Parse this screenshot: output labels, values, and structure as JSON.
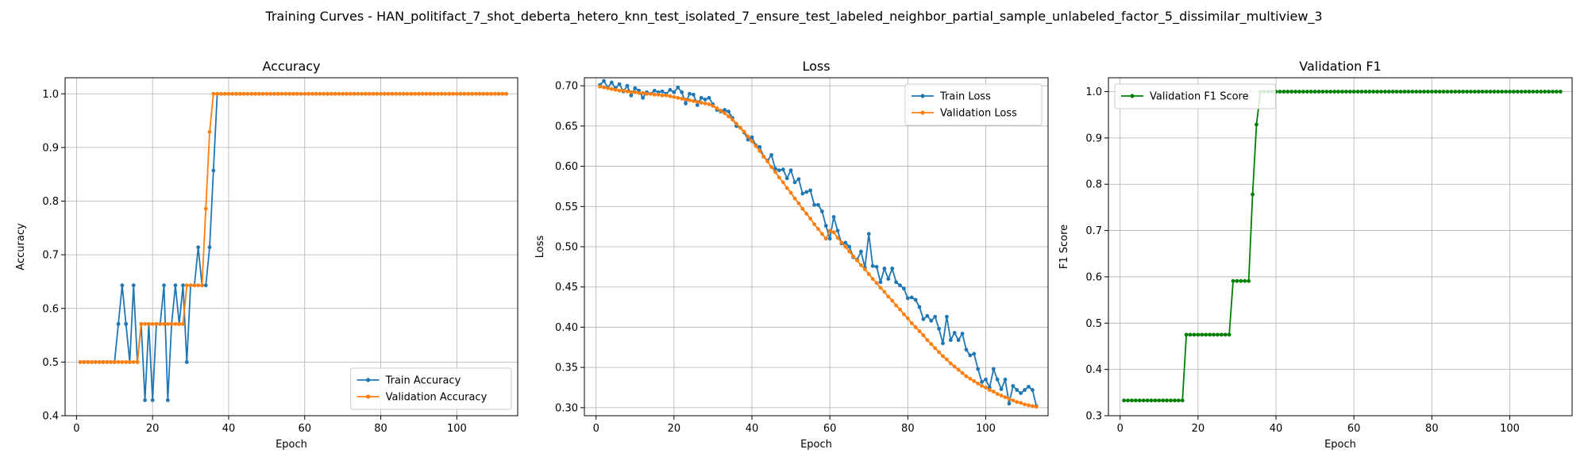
{
  "figure": {
    "suptitle": "Training Curves - HAN_politifact_7_shot_deberta_hetero_knn_test_isolated_7_ensure_test_labeled_neighbor_partial_sample_unlabeled_factor_5_dissimilar_multiview_3"
  },
  "chart_data": [
    {
      "type": "line",
      "title": "Accuracy",
      "xlabel": "Epoch",
      "ylabel": "Accuracy",
      "xlim": [
        -3,
        116
      ],
      "ylim": [
        0.4,
        1.03
      ],
      "xticks": [
        0,
        20,
        40,
        60,
        80,
        100
      ],
      "yticks": [
        0.4,
        0.5,
        0.6,
        0.7,
        0.8,
        0.9,
        1.0
      ],
      "grid": true,
      "legend_position": "lower-right",
      "series": [
        {
          "name": "Train Accuracy",
          "color": "#1f77b4",
          "x": [
            1,
            2,
            3,
            4,
            5,
            6,
            7,
            8,
            9,
            10,
            11,
            12,
            13,
            14,
            15,
            16,
            17,
            18,
            19,
            20,
            21,
            22,
            23,
            24,
            25,
            26,
            27,
            28,
            29,
            30,
            31,
            32,
            33,
            34,
            35,
            36,
            37,
            38,
            113
          ],
          "y": [
            0.5,
            0.5,
            0.5,
            0.5,
            0.5,
            0.5,
            0.5,
            0.5,
            0.5,
            0.5,
            0.571,
            0.643,
            0.571,
            0.5,
            0.643,
            0.5,
            0.571,
            0.429,
            0.571,
            0.429,
            0.571,
            0.571,
            0.643,
            0.429,
            0.571,
            0.643,
            0.571,
            0.643,
            0.5,
            0.643,
            0.643,
            0.714,
            0.643,
            0.643,
            0.714,
            0.857,
            1.0,
            1.0,
            1.0
          ]
        },
        {
          "name": "Validation Accuracy",
          "color": "#ff7f0e",
          "x": [
            1,
            2,
            3,
            4,
            5,
            6,
            7,
            8,
            9,
            10,
            11,
            12,
            13,
            14,
            15,
            16,
            17,
            18,
            19,
            20,
            21,
            22,
            23,
            24,
            25,
            26,
            27,
            28,
            29,
            30,
            31,
            32,
            33,
            34,
            35,
            36,
            37,
            38,
            113
          ],
          "y": [
            0.5,
            0.5,
            0.5,
            0.5,
            0.5,
            0.5,
            0.5,
            0.5,
            0.5,
            0.5,
            0.5,
            0.5,
            0.5,
            0.5,
            0.5,
            0.5,
            0.571,
            0.571,
            0.571,
            0.571,
            0.571,
            0.571,
            0.571,
            0.571,
            0.571,
            0.571,
            0.571,
            0.571,
            0.643,
            0.643,
            0.643,
            0.643,
            0.643,
            0.786,
            0.929,
            1.0,
            1.0,
            1.0,
            1.0
          ]
        }
      ]
    },
    {
      "type": "line",
      "title": "Loss",
      "xlabel": "Epoch",
      "ylabel": "Loss",
      "xlim": [
        -3,
        116
      ],
      "ylim": [
        0.29,
        0.71
      ],
      "xticks": [
        0,
        20,
        40,
        60,
        80,
        100
      ],
      "yticks": [
        0.3,
        0.35,
        0.4,
        0.45,
        0.5,
        0.55,
        0.6,
        0.65,
        0.7
      ],
      "grid": true,
      "legend_position": "upper-right",
      "series": [
        {
          "name": "Train Loss",
          "color": "#1f77b4",
          "x": [
            1,
            2,
            3,
            4,
            5,
            6,
            7,
            8,
            9,
            10,
            11,
            12,
            13,
            14,
            15,
            16,
            17,
            18,
            19,
            20,
            21,
            22,
            23,
            24,
            25,
            26,
            27,
            28,
            29,
            30,
            31,
            32,
            33,
            34,
            35,
            36,
            37,
            38,
            39,
            40,
            41,
            42,
            43,
            44,
            45,
            46,
            47,
            48,
            49,
            50,
            51,
            52,
            53,
            54,
            55,
            56,
            57,
            58,
            59,
            60,
            61,
            62,
            63,
            64,
            65,
            66,
            67,
            68,
            69,
            70,
            71,
            72,
            73,
            74,
            75,
            76,
            77,
            78,
            79,
            80,
            81,
            82,
            83,
            84,
            85,
            86,
            87,
            88,
            89,
            90,
            91,
            92,
            93,
            94,
            95,
            96,
            97,
            98,
            99,
            100,
            101,
            102,
            103,
            104,
            105,
            106,
            107,
            108,
            109,
            110,
            111,
            112,
            113
          ],
          "y": [
            0.701,
            0.706,
            0.698,
            0.704,
            0.697,
            0.702,
            0.693,
            0.7,
            0.688,
            0.697,
            0.694,
            0.685,
            0.692,
            0.69,
            0.694,
            0.692,
            0.693,
            0.69,
            0.695,
            0.692,
            0.698,
            0.692,
            0.678,
            0.69,
            0.689,
            0.676,
            0.685,
            0.683,
            0.685,
            0.677,
            0.67,
            0.668,
            0.67,
            0.668,
            0.66,
            0.65,
            0.648,
            0.642,
            0.633,
            0.636,
            0.626,
            0.624,
            0.612,
            0.607,
            0.614,
            0.597,
            0.595,
            0.596,
            0.585,
            0.595,
            0.58,
            0.584,
            0.566,
            0.568,
            0.57,
            0.552,
            0.552,
            0.544,
            0.526,
            0.51,
            0.537,
            0.52,
            0.504,
            0.505,
            0.5,
            0.487,
            0.484,
            0.494,
            0.474,
            0.516,
            0.476,
            0.475,
            0.456,
            0.473,
            0.46,
            0.473,
            0.456,
            0.452,
            0.448,
            0.436,
            0.437,
            0.434,
            0.425,
            0.41,
            0.414,
            0.408,
            0.413,
            0.398,
            0.38,
            0.413,
            0.384,
            0.393,
            0.384,
            0.392,
            0.372,
            0.365,
            0.367,
            0.348,
            0.332,
            0.335,
            0.325,
            0.348,
            0.335,
            0.323,
            0.335,
            0.305,
            0.327,
            0.322,
            0.318,
            0.322,
            0.326,
            0.322,
            0.302
          ]
        },
        {
          "name": "Validation Loss",
          "color": "#ff7f0e",
          "x": [
            1,
            2,
            3,
            4,
            5,
            6,
            7,
            8,
            9,
            10,
            11,
            12,
            13,
            14,
            15,
            16,
            17,
            18,
            19,
            20,
            21,
            22,
            23,
            24,
            25,
            26,
            27,
            28,
            29,
            30,
            31,
            32,
            33,
            34,
            35,
            36,
            37,
            38,
            39,
            40,
            41,
            42,
            43,
            44,
            45,
            46,
            47,
            48,
            49,
            50,
            51,
            52,
            53,
            54,
            55,
            56,
            57,
            58,
            59,
            60,
            61,
            62,
            63,
            64,
            65,
            66,
            67,
            68,
            69,
            70,
            71,
            72,
            73,
            74,
            75,
            76,
            77,
            78,
            79,
            80,
            81,
            82,
            83,
            84,
            85,
            86,
            87,
            88,
            89,
            90,
            91,
            92,
            93,
            94,
            95,
            96,
            97,
            98,
            99,
            100,
            101,
            102,
            103,
            104,
            105,
            106,
            107,
            108,
            109,
            110,
            111,
            112,
            113
          ],
          "y": [
            0.699,
            0.698,
            0.697,
            0.696,
            0.695,
            0.694,
            0.694,
            0.693,
            0.692,
            0.692,
            0.691,
            0.691,
            0.69,
            0.69,
            0.689,
            0.689,
            0.688,
            0.688,
            0.687,
            0.686,
            0.685,
            0.684,
            0.683,
            0.682,
            0.681,
            0.68,
            0.679,
            0.678,
            0.677,
            0.675,
            0.672,
            0.669,
            0.666,
            0.662,
            0.658,
            0.653,
            0.648,
            0.643,
            0.637,
            0.631,
            0.625,
            0.619,
            0.612,
            0.606,
            0.599,
            0.593,
            0.586,
            0.58,
            0.573,
            0.567,
            0.56,
            0.554,
            0.547,
            0.541,
            0.535,
            0.528,
            0.522,
            0.516,
            0.51,
            0.52,
            0.518,
            0.511,
            0.505,
            0.5,
            0.494,
            0.488,
            0.483,
            0.477,
            0.472,
            0.466,
            0.46,
            0.455,
            0.449,
            0.444,
            0.438,
            0.433,
            0.427,
            0.422,
            0.416,
            0.411,
            0.405,
            0.4,
            0.395,
            0.39,
            0.384,
            0.379,
            0.374,
            0.369,
            0.364,
            0.36,
            0.355,
            0.351,
            0.347,
            0.343,
            0.339,
            0.336,
            0.333,
            0.33,
            0.327,
            0.325,
            0.322,
            0.32,
            0.317,
            0.315,
            0.313,
            0.311,
            0.309,
            0.307,
            0.306,
            0.304,
            0.303,
            0.302,
            0.301
          ]
        }
      ]
    },
    {
      "type": "line",
      "title": "Validation F1",
      "xlabel": "Epoch",
      "ylabel": "F1 Score",
      "xlim": [
        -3,
        116
      ],
      "ylim": [
        0.3,
        1.03
      ],
      "xticks": [
        0,
        20,
        40,
        60,
        80,
        100
      ],
      "yticks": [
        0.3,
        0.4,
        0.5,
        0.6,
        0.7,
        0.8,
        0.9,
        1.0
      ],
      "grid": true,
      "legend_position": "upper-left",
      "series": [
        {
          "name": "Validation F1 Score",
          "color": "#008000",
          "x": [
            1,
            2,
            3,
            4,
            5,
            6,
            7,
            8,
            9,
            10,
            11,
            12,
            13,
            14,
            15,
            16,
            17,
            18,
            19,
            20,
            21,
            22,
            23,
            24,
            25,
            26,
            27,
            28,
            29,
            30,
            31,
            32,
            33,
            34,
            35,
            36,
            37,
            38,
            113
          ],
          "y": [
            0.333,
            0.333,
            0.333,
            0.333,
            0.333,
            0.333,
            0.333,
            0.333,
            0.333,
            0.333,
            0.333,
            0.333,
            0.333,
            0.333,
            0.333,
            0.333,
            0.475,
            0.475,
            0.475,
            0.475,
            0.475,
            0.475,
            0.475,
            0.475,
            0.475,
            0.475,
            0.475,
            0.475,
            0.591,
            0.591,
            0.591,
            0.591,
            0.591,
            0.778,
            0.929,
            1.0,
            1.0,
            1.0,
            1.0
          ]
        }
      ]
    }
  ]
}
